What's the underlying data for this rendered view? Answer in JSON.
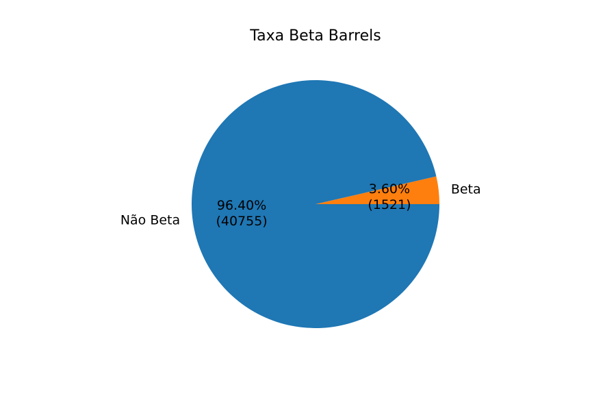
{
  "chart_data": {
    "type": "pie",
    "title": "Taxa Beta Barrels",
    "slices": [
      {
        "label": "Beta",
        "value": 1521,
        "pct_text": "3.60%",
        "count_text": "(1521)",
        "color": "#ff7f0e"
      },
      {
        "label": "Não Beta",
        "value": 40755,
        "pct_text": "96.40%",
        "count_text": "(40755)",
        "color": "#1f77b4"
      }
    ],
    "legend": "none"
  }
}
